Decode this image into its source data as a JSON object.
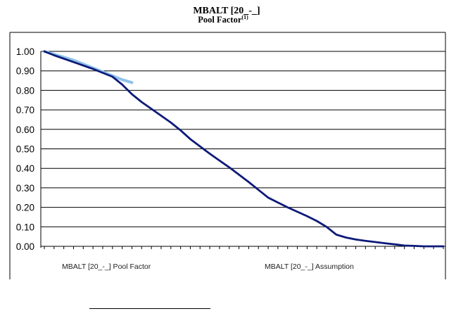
{
  "chart_data": {
    "type": "line",
    "title": "MBALT [20_-_]",
    "subtitle": "Pool Factor",
    "subtitle_superscript": "(1)",
    "ylim": [
      0,
      1
    ],
    "y_ticks": [
      "1.00",
      "0.90",
      "0.80",
      "0.70",
      "0.60",
      "0.50",
      "0.40",
      "0.30",
      "0.20",
      "0.10",
      "0.00"
    ],
    "grid": "horizontal",
    "legend_position": "bottom",
    "x_points": 42,
    "series": [
      {
        "name": "MBALT [20_-_] Pool Factor",
        "color": "#8fc3ea",
        "points": [
          [
            0,
            1.0
          ],
          [
            1,
            0.985
          ],
          [
            2,
            0.97
          ],
          [
            3,
            0.955
          ],
          [
            4,
            0.935
          ],
          [
            5,
            0.915
          ],
          [
            6,
            0.895
          ],
          [
            7,
            0.875
          ],
          [
            8,
            0.855
          ],
          [
            9,
            0.84
          ]
        ]
      },
      {
        "name": "MBALT [20_-_] Assumption",
        "color": "#0d1a78",
        "points": [
          [
            0,
            1.0
          ],
          [
            1,
            0.98
          ],
          [
            3,
            0.945
          ],
          [
            5,
            0.91
          ],
          [
            6,
            0.89
          ],
          [
            7,
            0.87
          ],
          [
            8,
            0.83
          ],
          [
            9,
            0.78
          ],
          [
            10,
            0.74
          ],
          [
            12,
            0.67
          ],
          [
            13,
            0.635
          ],
          [
            14,
            0.595
          ],
          [
            15,
            0.55
          ],
          [
            17,
            0.475
          ],
          [
            18,
            0.44
          ],
          [
            19,
            0.405
          ],
          [
            21,
            0.33
          ],
          [
            22,
            0.29
          ],
          [
            23,
            0.25
          ],
          [
            24,
            0.225
          ],
          [
            25,
            0.2
          ],
          [
            27,
            0.155
          ],
          [
            28,
            0.13
          ],
          [
            29,
            0.1
          ],
          [
            30,
            0.06
          ],
          [
            31,
            0.045
          ],
          [
            32,
            0.035
          ],
          [
            33,
            0.028
          ],
          [
            34,
            0.022
          ],
          [
            35,
            0.016
          ],
          [
            36,
            0.01
          ],
          [
            37,
            0.004
          ],
          [
            38,
            0.002
          ],
          [
            39,
            0.0
          ],
          [
            40,
            0.0
          ],
          [
            41,
            0.0
          ]
        ]
      }
    ]
  }
}
